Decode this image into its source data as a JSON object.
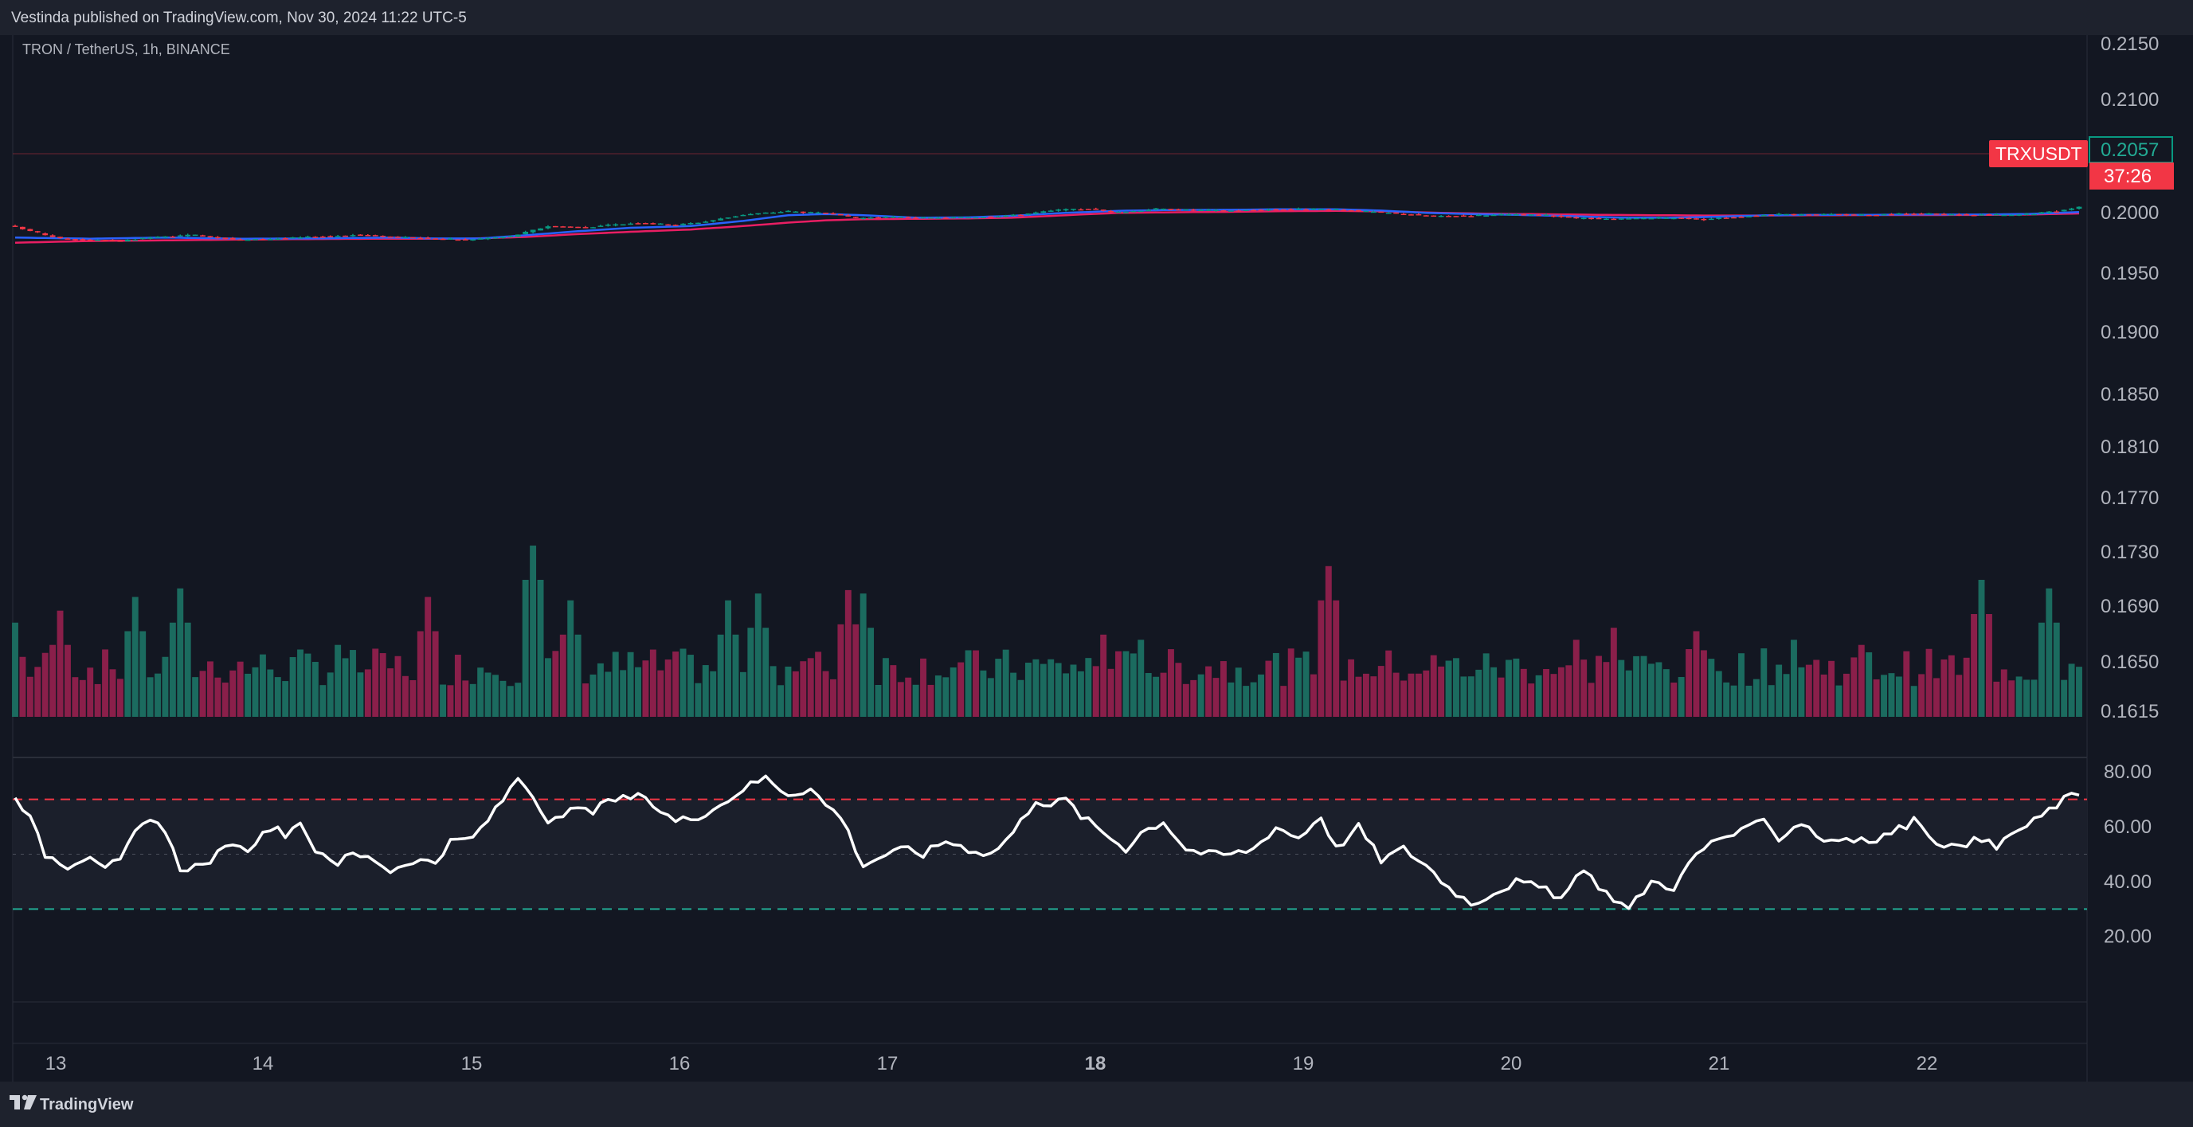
{
  "header": {
    "published": "Vestinda published on TradingView.com, Nov 30, 2024 11:22 UTC-5"
  },
  "symbol_line": "TRON / TetherUS, 1h, BINANCE",
  "footer": {
    "brand": "TradingView"
  },
  "colors": {
    "bg": "#131722",
    "up": "#089981",
    "down": "#f23645",
    "ema_fast": "#2962ff",
    "ema_slow": "#e91e63",
    "rsi": "#ffffff",
    "rsi_upper_band": "#f23645",
    "rsi_lower_band": "#22ab94"
  },
  "price_badge": {
    "symbol": "TRXUSDT",
    "price": "0.2057",
    "countdown": "37:26"
  },
  "chart_data": [
    {
      "type": "candlestick",
      "price_axis_ticks": [
        "0.2150",
        "0.2100",
        "0.2000",
        "0.1950",
        "0.1900",
        "0.1850",
        "0.1810",
        "0.1770",
        "0.1730",
        "0.1690",
        "0.1650",
        "0.1615"
      ],
      "time_axis_ticks": [
        "13",
        "14",
        "15",
        "16",
        "17",
        "18",
        "19",
        "20",
        "21",
        "22"
      ],
      "bold_tick": "18",
      "close_anchors": [
        [
          0,
          0.188
        ],
        [
          3,
          0.183
        ],
        [
          6,
          0.178
        ],
        [
          10,
          0.177
        ],
        [
          14,
          0.1758
        ],
        [
          18,
          0.179
        ],
        [
          24,
          0.1812
        ],
        [
          30,
          0.1768
        ],
        [
          38,
          0.179
        ],
        [
          46,
          0.1815
        ],
        [
          52,
          0.179
        ],
        [
          56,
          0.1782
        ],
        [
          60,
          0.1772
        ],
        [
          66,
          0.18
        ],
        [
          71,
          0.189
        ],
        [
          76,
          0.188
        ],
        [
          83,
          0.192
        ],
        [
          88,
          0.19
        ],
        [
          92,
          0.193
        ],
        [
          97,
          0.199
        ],
        [
          103,
          0.202
        ],
        [
          108,
          0.2
        ],
        [
          112,
          0.196
        ],
        [
          117,
          0.197
        ],
        [
          122,
          0.196
        ],
        [
          128,
          0.197
        ],
        [
          133,
          0.1985
        ],
        [
          139,
          0.203
        ],
        [
          143,
          0.204
        ],
        [
          147,
          0.201
        ],
        [
          152,
          0.204
        ],
        [
          157,
          0.203
        ],
        [
          162,
          0.2025
        ],
        [
          167,
          0.2035
        ],
        [
          172,
          0.204
        ],
        [
          177,
          0.203
        ],
        [
          182,
          0.201
        ],
        [
          186,
          0.199
        ],
        [
          190,
          0.1975
        ],
        [
          195,
          0.1985
        ],
        [
          199,
          0.199
        ],
        [
          204,
          0.1985
        ],
        [
          208,
          0.196
        ],
        [
          213,
          0.195
        ],
        [
          217,
          0.196
        ],
        [
          221,
          0.196
        ],
        [
          225,
          0.195
        ],
        [
          229,
          0.197
        ],
        [
          234,
          0.199
        ],
        [
          238,
          0.1995
        ],
        [
          243,
          0.199
        ],
        [
          248,
          0.199
        ],
        [
          253,
          0.2
        ],
        [
          258,
          0.199
        ],
        [
          263,
          0.199
        ],
        [
          266,
          0.1985
        ],
        [
          269,
          0.2
        ],
        [
          272,
          0.202
        ],
        [
          275,
          0.2057
        ]
      ],
      "ema_fast_anchors": [
        [
          0,
          0.179
        ],
        [
          10,
          0.178
        ],
        [
          20,
          0.179
        ],
        [
          30,
          0.178
        ],
        [
          40,
          0.1782
        ],
        [
          50,
          0.179
        ],
        [
          56,
          0.1782
        ],
        [
          62,
          0.1782
        ],
        [
          68,
          0.181
        ],
        [
          75,
          0.1845
        ],
        [
          82,
          0.1875
        ],
        [
          90,
          0.189
        ],
        [
          97,
          0.1935
        ],
        [
          103,
          0.1985
        ],
        [
          108,
          0.1995
        ],
        [
          113,
          0.1985
        ],
        [
          120,
          0.1963
        ],
        [
          127,
          0.1966
        ],
        [
          133,
          0.198
        ],
        [
          140,
          0.2005
        ],
        [
          147,
          0.2023
        ],
        [
          154,
          0.203
        ],
        [
          162,
          0.2032
        ],
        [
          169,
          0.2037
        ],
        [
          176,
          0.2037
        ],
        [
          182,
          0.2025
        ],
        [
          188,
          0.2005
        ],
        [
          194,
          0.1995
        ],
        [
          200,
          0.1988
        ],
        [
          207,
          0.1977
        ],
        [
          213,
          0.1965
        ],
        [
          220,
          0.1962
        ],
        [
          226,
          0.197
        ],
        [
          233,
          0.1983
        ],
        [
          240,
          0.1988
        ],
        [
          247,
          0.1988
        ],
        [
          254,
          0.1991
        ],
        [
          261,
          0.199
        ],
        [
          268,
          0.1995
        ],
        [
          275,
          0.2012
        ]
      ],
      "ema_slow_anchors": [
        [
          0,
          0.1745
        ],
        [
          10,
          0.176
        ],
        [
          20,
          0.1765
        ],
        [
          30,
          0.1772
        ],
        [
          40,
          0.1777
        ],
        [
          50,
          0.178
        ],
        [
          60,
          0.178
        ],
        [
          68,
          0.1795
        ],
        [
          75,
          0.182
        ],
        [
          82,
          0.184
        ],
        [
          90,
          0.186
        ],
        [
          97,
          0.189
        ],
        [
          103,
          0.192
        ],
        [
          108,
          0.194
        ],
        [
          113,
          0.195
        ],
        [
          120,
          0.1953
        ],
        [
          127,
          0.1957
        ],
        [
          133,
          0.1963
        ],
        [
          140,
          0.1985
        ],
        [
          147,
          0.2005
        ],
        [
          154,
          0.201
        ],
        [
          162,
          0.2014
        ],
        [
          169,
          0.202
        ],
        [
          176,
          0.2022
        ],
        [
          183,
          0.2018
        ],
        [
          190,
          0.2005
        ],
        [
          197,
          0.1997
        ],
        [
          204,
          0.1993
        ],
        [
          211,
          0.1988
        ],
        [
          218,
          0.1985
        ],
        [
          225,
          0.1982
        ],
        [
          232,
          0.1982
        ],
        [
          240,
          0.1984
        ],
        [
          247,
          0.1986
        ],
        [
          254,
          0.1986
        ],
        [
          261,
          0.1987
        ],
        [
          268,
          0.199
        ],
        [
          275,
          0.2
        ]
      ],
      "volume_tall_bars": [
        [
          0,
          0.55
        ],
        [
          6,
          0.62
        ],
        [
          16,
          0.7
        ],
        [
          22,
          0.75
        ],
        [
          43,
          0.42
        ],
        [
          55,
          0.7
        ],
        [
          69,
          1.0
        ],
        [
          74,
          0.68
        ],
        [
          95,
          0.68
        ],
        [
          99,
          0.72
        ],
        [
          111,
          0.74
        ],
        [
          113,
          0.72
        ],
        [
          145,
          0.48
        ],
        [
          150,
          0.45
        ],
        [
          175,
          0.88
        ],
        [
          208,
          0.45
        ],
        [
          213,
          0.52
        ],
        [
          224,
          0.5
        ],
        [
          237,
          0.45
        ],
        [
          246,
          0.42
        ],
        [
          262,
          0.8
        ],
        [
          271,
          0.75
        ]
      ]
    },
    {
      "type": "line",
      "name": "RSI",
      "y_axis_ticks": [
        "80.00",
        "60.00",
        "40.00",
        "20.00"
      ],
      "ylim": [
        11.5,
        85.0
      ],
      "bands": {
        "upper": 70,
        "middle": 50,
        "lower": 30
      },
      "anchors": [
        [
          0,
          72
        ],
        [
          2,
          63
        ],
        [
          4,
          50
        ],
        [
          7,
          46
        ],
        [
          10,
          50
        ],
        [
          12,
          46
        ],
        [
          14,
          47
        ],
        [
          16,
          58
        ],
        [
          18,
          62
        ],
        [
          20,
          58
        ],
        [
          22,
          45
        ],
        [
          25,
          46
        ],
        [
          28,
          52
        ],
        [
          31,
          52
        ],
        [
          34,
          60
        ],
        [
          36,
          57
        ],
        [
          38,
          60
        ],
        [
          40,
          52
        ],
        [
          43,
          47
        ],
        [
          45,
          50
        ],
        [
          48,
          48
        ],
        [
          50,
          44
        ],
        [
          53,
          48
        ],
        [
          56,
          47
        ],
        [
          58,
          54
        ],
        [
          61,
          56
        ],
        [
          64,
          66
        ],
        [
          67,
          78
        ],
        [
          69,
          72
        ],
        [
          71,
          60
        ],
        [
          74,
          66
        ],
        [
          77,
          66
        ],
        [
          80,
          70
        ],
        [
          83,
          71
        ],
        [
          86,
          66
        ],
        [
          88,
          62
        ],
        [
          91,
          64
        ],
        [
          94,
          68
        ],
        [
          97,
          74
        ],
        [
          100,
          78
        ],
        [
          103,
          72
        ],
        [
          106,
          74
        ],
        [
          108,
          68
        ],
        [
          110,
          64
        ],
        [
          113,
          46
        ],
        [
          116,
          50
        ],
        [
          119,
          52
        ],
        [
          121,
          50
        ],
        [
          124,
          55
        ],
        [
          127,
          52
        ],
        [
          130,
          50
        ],
        [
          133,
          58
        ],
        [
          136,
          70
        ],
        [
          138,
          68
        ],
        [
          140,
          70
        ],
        [
          142,
          64
        ],
        [
          145,
          58
        ],
        [
          148,
          52
        ],
        [
          150,
          58
        ],
        [
          153,
          62
        ],
        [
          156,
          52
        ],
        [
          159,
          50
        ],
        [
          162,
          50
        ],
        [
          165,
          52
        ],
        [
          168,
          60
        ],
        [
          171,
          56
        ],
        [
          174,
          64
        ],
        [
          176,
          52
        ],
        [
          179,
          60
        ],
        [
          182,
          48
        ],
        [
          185,
          52
        ],
        [
          188,
          46
        ],
        [
          191,
          38
        ],
        [
          194,
          32
        ],
        [
          197,
          36
        ],
        [
          200,
          40
        ],
        [
          203,
          38
        ],
        [
          206,
          34
        ],
        [
          209,
          44
        ],
        [
          212,
          36
        ],
        [
          215,
          30
        ],
        [
          218,
          40
        ],
        [
          221,
          38
        ],
        [
          224,
          50
        ],
        [
          227,
          56
        ],
        [
          230,
          58
        ],
        [
          233,
          62
        ],
        [
          235,
          56
        ],
        [
          238,
          62
        ],
        [
          241,
          55
        ],
        [
          244,
          56
        ],
        [
          247,
          54
        ],
        [
          250,
          58
        ],
        [
          253,
          62
        ],
        [
          256,
          55
        ],
        [
          259,
          52
        ],
        [
          262,
          56
        ],
        [
          264,
          52
        ],
        [
          266,
          58
        ],
        [
          268,
          60
        ],
        [
          271,
          66
        ],
        [
          273,
          70
        ],
        [
          275,
          72
        ]
      ]
    }
  ]
}
